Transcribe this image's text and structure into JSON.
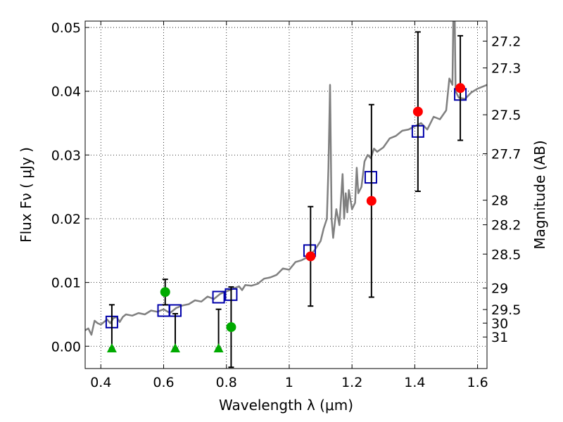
{
  "chart_data": {
    "type": "scatter",
    "xlabel": "Wavelength  λ (μm)",
    "ylabel": "Flux  Fν  ( μJy )",
    "y2label": "Magnitude (AB)",
    "xlim": [
      0.35,
      1.63
    ],
    "ylim": [
      -0.0035,
      0.051
    ],
    "grid": true,
    "x_ticks": [
      0.4,
      0.6,
      0.8,
      1.0,
      1.2,
      1.4,
      1.6
    ],
    "x_tick_labels": [
      "0.4",
      "0.6",
      "0.8",
      "1",
      "1.2",
      "1.4",
      "1.6"
    ],
    "y_ticks": [
      0.0,
      0.01,
      0.02,
      0.03,
      0.04,
      0.05
    ],
    "y_tick_labels": [
      "0.00",
      "0.01",
      "0.02",
      "0.03",
      "0.04",
      "0.05"
    ],
    "mag_ticks": [
      "27.2",
      "27.3",
      "27.5",
      "27.7",
      "28",
      "28.2",
      "28.5",
      "29",
      "29.5",
      "30",
      "31"
    ],
    "series": [
      {
        "kind": "line",
        "color": "#808080",
        "x": [
          0.35,
          0.36,
          0.37,
          0.38,
          0.39,
          0.4,
          0.41,
          0.42,
          0.43,
          0.44,
          0.45,
          0.46,
          0.47,
          0.48,
          0.5,
          0.52,
          0.54,
          0.56,
          0.58,
          0.6,
          0.62,
          0.64,
          0.66,
          0.68,
          0.7,
          0.72,
          0.74,
          0.76,
          0.78,
          0.8,
          0.82,
          0.84,
          0.85,
          0.86,
          0.88,
          0.9,
          0.92,
          0.94,
          0.96,
          0.98,
          1.0,
          1.02,
          1.04,
          1.06,
          1.08,
          1.1,
          1.11,
          1.12,
          1.125,
          1.13,
          1.135,
          1.14,
          1.15,
          1.16,
          1.17,
          1.175,
          1.18,
          1.185,
          1.19,
          1.2,
          1.21,
          1.215,
          1.22,
          1.23,
          1.24,
          1.25,
          1.26,
          1.27,
          1.28,
          1.3,
          1.32,
          1.34,
          1.36,
          1.38,
          1.4,
          1.42,
          1.44,
          1.46,
          1.48,
          1.5,
          1.51,
          1.52,
          1.525,
          1.53,
          1.54,
          1.56,
          1.58,
          1.6,
          1.62,
          1.63
        ],
        "y": [
          0.0025,
          0.0028,
          0.0018,
          0.004,
          0.0036,
          0.0034,
          0.0038,
          0.0042,
          0.0036,
          0.0044,
          0.0046,
          0.0038,
          0.0046,
          0.005,
          0.0048,
          0.0052,
          0.005,
          0.0056,
          0.0054,
          0.0058,
          0.0052,
          0.006,
          0.0064,
          0.0066,
          0.0072,
          0.007,
          0.0078,
          0.0074,
          0.0082,
          0.0086,
          0.009,
          0.0094,
          0.0088,
          0.0096,
          0.0095,
          0.0098,
          0.0106,
          0.0108,
          0.0112,
          0.0122,
          0.012,
          0.0132,
          0.0135,
          0.014,
          0.015,
          0.0165,
          0.0185,
          0.02,
          0.028,
          0.041,
          0.02,
          0.017,
          0.0215,
          0.019,
          0.027,
          0.02,
          0.024,
          0.021,
          0.0245,
          0.0215,
          0.0225,
          0.028,
          0.024,
          0.025,
          0.029,
          0.03,
          0.0295,
          0.031,
          0.0305,
          0.0312,
          0.0326,
          0.033,
          0.0338,
          0.034,
          0.0345,
          0.035,
          0.034,
          0.036,
          0.0356,
          0.037,
          0.042,
          0.041,
          0.06,
          0.04,
          0.039,
          0.0388,
          0.0398,
          0.0404,
          0.0408,
          0.041
        ]
      },
      {
        "kind": "points",
        "marker": "open-square",
        "color": "#0000aa",
        "x": [
          0.435,
          0.6,
          0.637,
          0.775,
          0.815,
          1.065,
          1.26,
          1.41,
          1.545
        ],
        "y": [
          0.0038,
          0.0056,
          0.0056,
          0.0077,
          0.0081,
          0.015,
          0.0265,
          0.0337,
          0.0395
        ]
      },
      {
        "kind": "points",
        "marker": "filled-circle",
        "color": "#ff0000",
        "x": [
          1.068,
          1.262,
          1.41,
          1.545
        ],
        "y": [
          0.0141,
          0.0228,
          0.0368,
          0.0405
        ],
        "err": [
          0.0078,
          0.0151,
          0.0125,
          0.0082
        ]
      },
      {
        "kind": "points",
        "marker": "filled-circle",
        "color": "#00aa00",
        "x": [
          0.605,
          0.815
        ],
        "y": [
          0.0085,
          0.003
        ],
        "err": [
          0.002,
          0.0063
        ]
      },
      {
        "kind": "points",
        "marker": "triangle-up",
        "color": "#00aa00",
        "x": [
          0.435,
          0.637,
          0.775
        ],
        "y": [
          -0.0003,
          -0.0003,
          -0.0003
        ],
        "err_upper": [
          0.0068,
          0.0054,
          0.0061
        ]
      }
    ]
  }
}
